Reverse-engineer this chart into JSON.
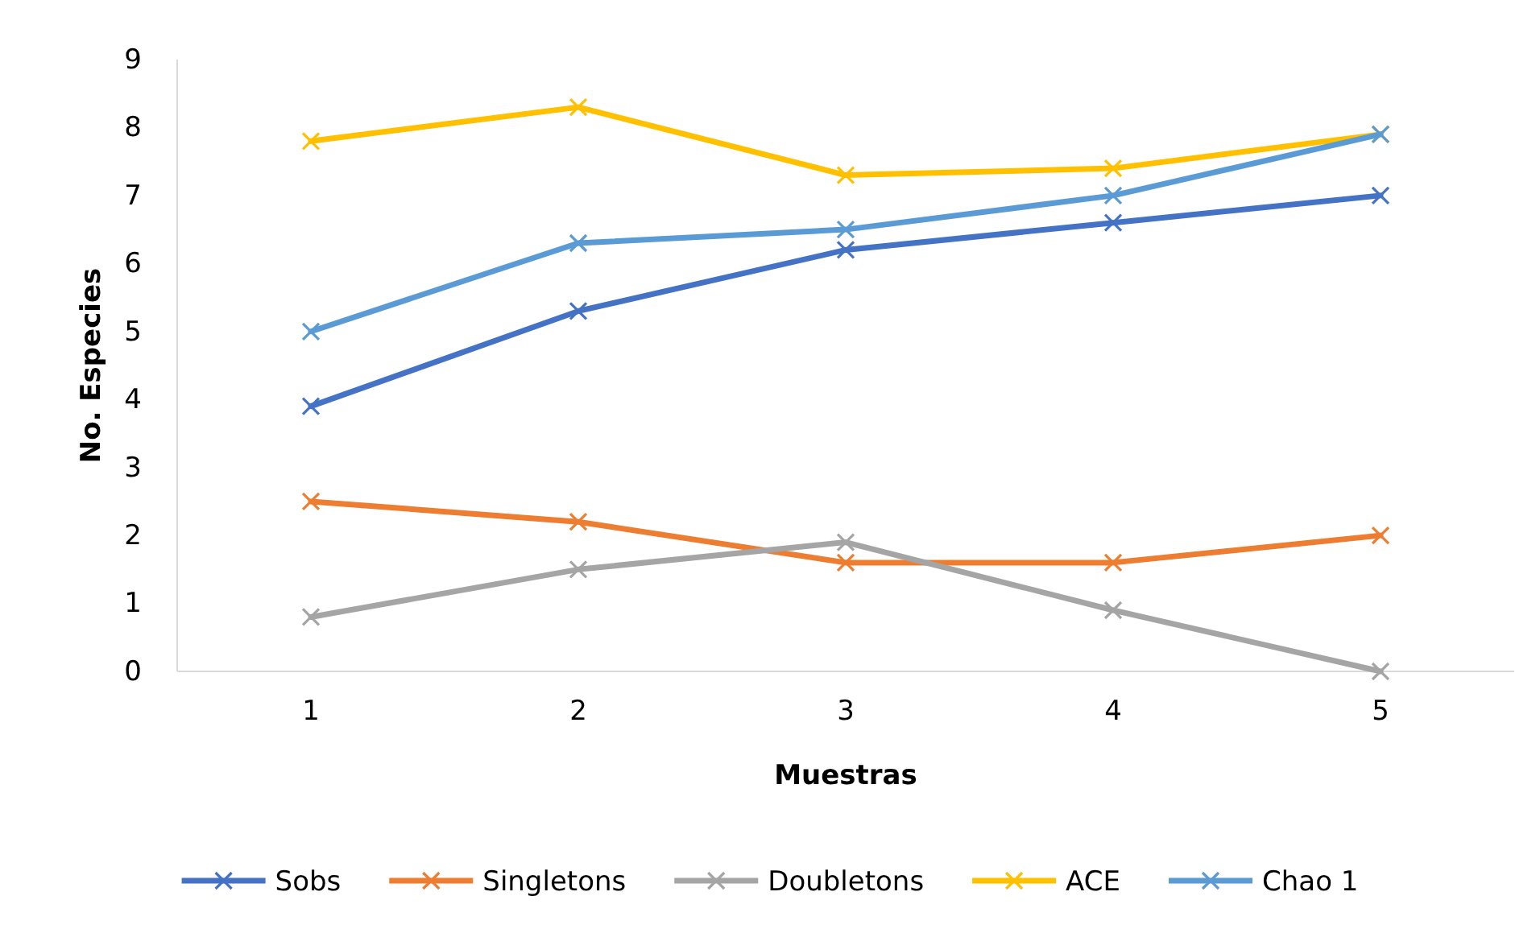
{
  "chart_data": {
    "type": "line",
    "xlabel": "Muestras",
    "ylabel": "No. Especies",
    "categories": [
      "1",
      "2",
      "3",
      "4",
      "5"
    ],
    "series": [
      {
        "name": "Sobs",
        "color": "#4472c4",
        "values": [
          3.9,
          5.3,
          6.2,
          6.6,
          7.0
        ]
      },
      {
        "name": "Singletons",
        "color": "#ed7d31",
        "values": [
          2.5,
          2.2,
          1.6,
          1.6,
          2.0
        ]
      },
      {
        "name": "Doubletons",
        "color": "#a5a5a5",
        "values": [
          0.8,
          1.5,
          1.9,
          0.9,
          0
        ]
      },
      {
        "name": "ACE",
        "color": "#ffc000",
        "values": [
          7.8,
          8.3,
          7.3,
          7.4,
          7.9
        ]
      },
      {
        "name": "Chao 1",
        "color": "#5b9bd5",
        "values": [
          5.0,
          6.3,
          6.5,
          7.0,
          7.9
        ]
      }
    ],
    "ylim": [
      0,
      9
    ],
    "yticks": [
      0,
      1,
      2,
      3,
      4,
      5,
      6,
      7,
      8,
      9
    ],
    "grid": false,
    "legend": "bottom",
    "marker": "cross",
    "line_style": "solid"
  }
}
